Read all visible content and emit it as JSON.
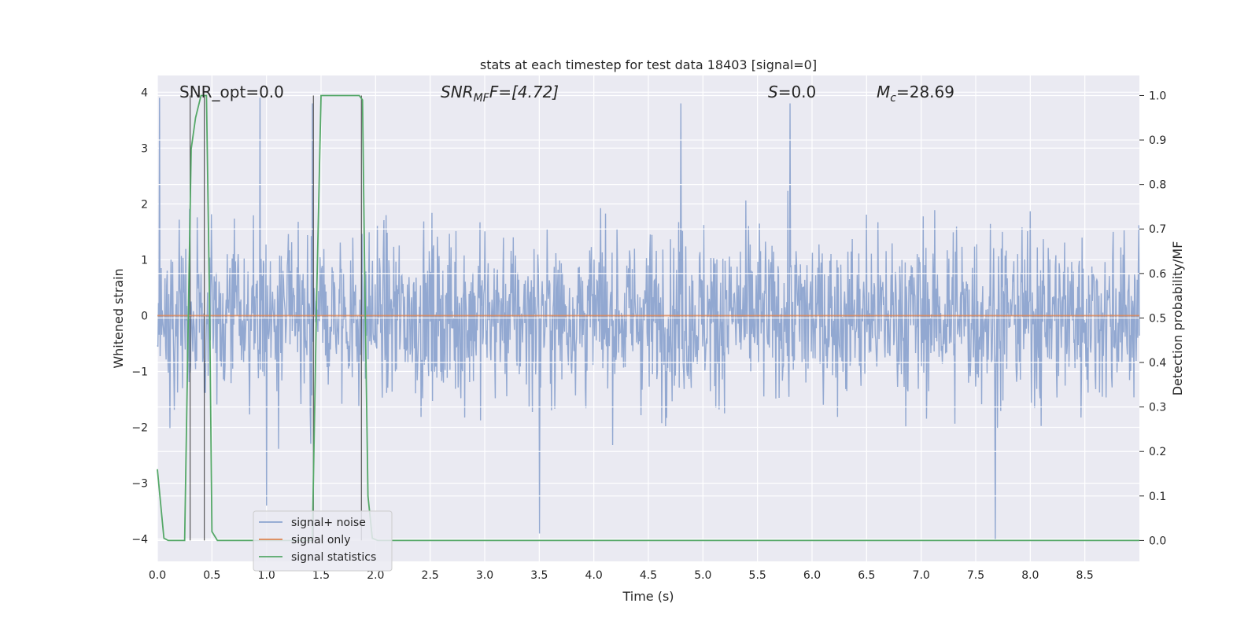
{
  "chart_data": {
    "type": "line",
    "title": "stats at each timestep for test data 18403 [signal=0]",
    "xlabel": "Time (s)",
    "ylabel_left": "Whitened strain",
    "ylabel_right": "Detection probability/MF",
    "xlim": [
      0.0,
      9.0
    ],
    "ylim_left": [
      -4.4,
      4.3
    ],
    "ylim_right": [
      -0.047,
      1.045
    ],
    "x_ticks": [
      0.0,
      0.5,
      1.0,
      1.5,
      2.0,
      2.5,
      3.0,
      3.5,
      4.0,
      4.5,
      5.0,
      5.5,
      6.0,
      6.5,
      7.0,
      7.5,
      8.0,
      8.5
    ],
    "x_tick_labels": [
      "0.0",
      "0.5",
      "1.0",
      "1.5",
      "2.0",
      "2.5",
      "3.0",
      "3.5",
      "4.0",
      "4.5",
      "5.0",
      "5.5",
      "6.0",
      "6.5",
      "7.0",
      "7.5",
      "8.0",
      "8.5"
    ],
    "y_left_ticks": [
      4,
      3,
      2,
      1,
      0,
      -1,
      -2,
      -3,
      -4
    ],
    "y_left_tick_labels": [
      "4",
      "3",
      "2",
      "1",
      "0",
      "−1",
      "−2",
      "−3",
      "−4"
    ],
    "y_right_ticks": [
      1.0,
      0.9,
      0.8,
      0.7,
      0.6,
      0.5,
      0.4,
      0.3,
      0.2,
      0.1,
      0.0
    ],
    "y_right_tick_labels": [
      "1.0",
      "0.9",
      "0.8",
      "0.7",
      "0.6",
      "0.5",
      "0.4",
      "0.3",
      "0.2",
      "0.1",
      "0.0"
    ],
    "grid": true,
    "legend_position": "lower-left",
    "annotations": {
      "snr_opt": "SNR_opt=0.0",
      "snr_mf_main": "SNR",
      "snr_mf_sub": "MF",
      "snr_mf_rest": "F=[4.72]",
      "s_main": "S",
      "s_rest": "=0.0",
      "mc_main": "M",
      "mc_sub": "c",
      "mc_rest": "=28.69"
    },
    "series": [
      {
        "name": "signal+ noise",
        "axis": "left",
        "color": "#8da4cf",
        "description_stats": {
          "mean": 0.0,
          "std": 1.0,
          "n_points": 1800,
          "peaks": [
            [
              0.02,
              3.9
            ],
            [
              0.94,
              3.9
            ],
            [
              1.0,
              -3.4
            ],
            [
              1.42,
              3.8
            ],
            [
              4.8,
              3.8
            ],
            [
              5.8,
              3.8
            ],
            [
              7.68,
              -4.0
            ],
            [
              3.5,
              -3.9
            ]
          ]
        }
      },
      {
        "name": "signal only",
        "axis": "left",
        "color": "#dd8452",
        "x": [
          0.0,
          9.0
        ],
        "y": [
          0.0,
          0.0
        ]
      },
      {
        "name": "signal statistics",
        "axis": "right",
        "color": "#55a868",
        "x": [
          0.0,
          0.06,
          0.1,
          0.25,
          0.28,
          0.31,
          0.35,
          0.4,
          0.45,
          0.48,
          0.5,
          0.55,
          0.6,
          1.42,
          1.46,
          1.5,
          1.55,
          1.85,
          1.88,
          1.9,
          1.93,
          1.97,
          2.02,
          2.1,
          9.0
        ],
        "y": [
          0.16,
          0.005,
          0.0,
          0.0,
          0.45,
          0.88,
          0.95,
          1.0,
          1.0,
          0.5,
          0.02,
          0.0,
          0.0,
          0.0,
          0.55,
          1.0,
          1.0,
          1.0,
          0.99,
          0.6,
          0.1,
          0.005,
          0.0,
          0.0,
          0.0
        ]
      }
    ],
    "vertical_markers": [
      0.3,
      0.43,
      1.43,
      1.87
    ]
  }
}
